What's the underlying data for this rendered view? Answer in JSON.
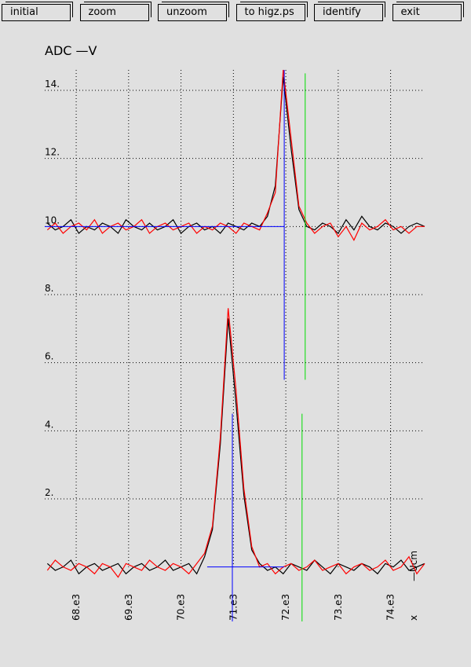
{
  "buttons": [
    "initial",
    "zoom",
    "unzoom",
    "to higz.ps",
    "identify",
    "exit"
  ],
  "chart_data": {
    "type": "line",
    "title": "ADC  —V",
    "xlabel": "—Ucm",
    "annotations": [
      "x"
    ],
    "x": [
      67450,
      67600,
      67750,
      67900,
      68050,
      68200,
      68350,
      68500,
      68650,
      68800,
      68950,
      69100,
      69250,
      69400,
      69550,
      69700,
      69850,
      70000,
      70150,
      70300,
      70450,
      70600,
      70750,
      70900,
      71050,
      71200,
      71350,
      71500,
      71650,
      71800,
      71950,
      72100,
      72250,
      72400,
      72550,
      72700,
      72850,
      73000,
      73150,
      73300,
      73450,
      73600,
      73750,
      73900,
      74050,
      74200,
      74350,
      74500,
      74650
    ],
    "series": [
      {
        "color": "#000000",
        "values": [
          10.1,
          9.9,
          10.0,
          10.2,
          9.8,
          10.0,
          9.9,
          10.1,
          10.0,
          9.8,
          10.2,
          10.0,
          9.9,
          10.1,
          9.9,
          10.0,
          10.2,
          9.8,
          10.0,
          10.1,
          9.9,
          10.0,
          9.8,
          10.1,
          10.0,
          9.9,
          10.1,
          10.0,
          10.3,
          11.2,
          14.4,
          12.3,
          10.5,
          10.0,
          9.9,
          10.1,
          10.0,
          9.8,
          10.2,
          9.9,
          10.3,
          10.0,
          9.9,
          10.1,
          10.0,
          9.8,
          10.0,
          10.1,
          10.0
        ]
      },
      {
        "color": "#ff0000",
        "values": [
          9.9,
          10.1,
          9.8,
          10.0,
          10.1,
          9.9,
          10.2,
          9.8,
          10.0,
          10.1,
          9.9,
          10.0,
          10.2,
          9.8,
          10.0,
          10.1,
          9.9,
          10.0,
          10.1,
          9.8,
          10.0,
          9.9,
          10.1,
          10.0,
          9.8,
          10.1,
          10.0,
          9.9,
          10.4,
          11.0,
          14.6,
          12.6,
          10.6,
          10.1,
          9.8,
          10.0,
          10.1,
          9.7,
          10.0,
          9.6,
          10.1,
          9.9,
          10.0,
          10.2,
          9.9,
          10.0,
          9.8,
          10.0,
          10.0
        ]
      },
      {
        "color": "#000000",
        "values": [
          0.1,
          -0.1,
          0.0,
          0.2,
          -0.2,
          0.0,
          0.1,
          -0.1,
          0.0,
          0.1,
          -0.2,
          0.0,
          0.1,
          -0.1,
          0.0,
          0.2,
          -0.1,
          0.0,
          0.1,
          -0.2,
          0.3,
          1.1,
          3.6,
          7.3,
          4.8,
          2.1,
          0.5,
          0.1,
          -0.1,
          0.0,
          -0.2,
          0.1,
          0.0,
          -0.1,
          0.2,
          0.0,
          -0.2,
          0.1,
          0.0,
          -0.1,
          0.1,
          0.0,
          -0.2,
          0.1,
          0.0,
          0.2,
          -0.1,
          0.0,
          0.1
        ]
      },
      {
        "color": "#ff0000",
        "values": [
          -0.1,
          0.2,
          0.0,
          -0.1,
          0.1,
          0.0,
          -0.2,
          0.1,
          0.0,
          -0.3,
          0.1,
          0.0,
          -0.1,
          0.2,
          0.0,
          -0.1,
          0.1,
          0.0,
          -0.2,
          0.1,
          0.4,
          1.2,
          3.8,
          7.6,
          5.2,
          2.3,
          0.6,
          0.0,
          0.1,
          -0.2,
          0.0,
          0.1,
          -0.1,
          0.0,
          0.2,
          -0.1,
          0.0,
          0.1,
          -0.2,
          0.0,
          0.1,
          -0.1,
          0.0,
          0.2,
          -0.1,
          0.0,
          0.3,
          -0.2,
          0.1
        ]
      }
    ],
    "vlines": [
      {
        "x": 71970,
        "ylim": [
          5.5,
          14.6
        ],
        "color": "#0000ff"
      },
      {
        "x": 72370,
        "ylim": [
          5.5,
          14.5
        ],
        "color": "#00dd00"
      },
      {
        "x": 70980,
        "ylim": [
          -1.6,
          4.5
        ],
        "color": "#0000ff"
      },
      {
        "x": 72310,
        "ylim": [
          -1.6,
          4.5
        ],
        "color": "#00dd00"
      }
    ],
    "hlines": [
      {
        "y": 10,
        "xlim": [
          67400,
          71970
        ],
        "color": "#0000ff"
      },
      {
        "y": 0,
        "xlim": [
          70500,
          71970
        ],
        "color": "#0000ff"
      }
    ],
    "xlim": [
      67400,
      74650
    ],
    "ylim": [
      -1.6,
      14.6
    ],
    "xticks": [
      {
        "value": 68000,
        "label": "68.e3"
      },
      {
        "value": 69000,
        "label": "69.e3"
      },
      {
        "value": 70000,
        "label": "70.e3"
      },
      {
        "value": 71000,
        "label": "71.e3"
      },
      {
        "value": 72000,
        "label": "72.e3"
      },
      {
        "value": 73000,
        "label": "73.e3"
      },
      {
        "value": 74000,
        "label": "74.e3"
      }
    ],
    "yticks": [
      {
        "value": 2,
        "label": "2."
      },
      {
        "value": 4,
        "label": "4."
      },
      {
        "value": 6,
        "label": "6."
      },
      {
        "value": 8,
        "label": "8."
      },
      {
        "value": 10,
        "label": "10."
      },
      {
        "value": 12,
        "label": "12."
      },
      {
        "value": 14,
        "label": "14."
      }
    ],
    "grid": true
  }
}
